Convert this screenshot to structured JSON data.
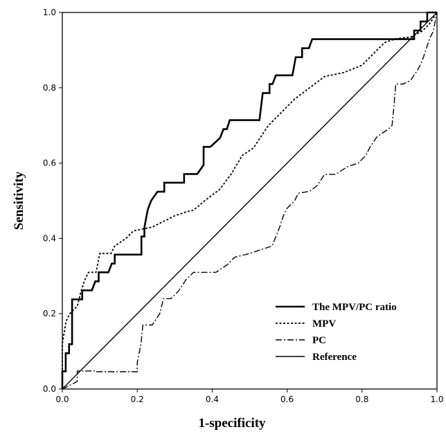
{
  "chart_data": {
    "type": "line",
    "xlabel": "1-specificity",
    "ylabel": "Sensitivity",
    "xlim": [
      0,
      1
    ],
    "ylim": [
      0,
      1
    ],
    "x_ticks": [
      "0.0",
      "0.2",
      "0.4",
      "0.6",
      "0.8",
      "1.0"
    ],
    "y_ticks": [
      "0.0",
      "0.2",
      "0.4",
      "0.6",
      "0.8",
      "1.0"
    ],
    "grid": false,
    "legend_position": "bottom-right",
    "series": [
      {
        "name": "The MPV/PC ratio",
        "style": "solid-thick",
        "points": [
          [
            0,
            0
          ],
          [
            0,
            0.047
          ],
          [
            0.009,
            0.047
          ],
          [
            0.009,
            0.095
          ],
          [
            0.018,
            0.095
          ],
          [
            0.018,
            0.119
          ],
          [
            0.026,
            0.119
          ],
          [
            0.026,
            0.238
          ],
          [
            0.053,
            0.238
          ],
          [
            0.053,
            0.262
          ],
          [
            0.079,
            0.262
          ],
          [
            0.088,
            0.286
          ],
          [
            0.097,
            0.286
          ],
          [
            0.097,
            0.31
          ],
          [
            0.123,
            0.31
          ],
          [
            0.132,
            0.333
          ],
          [
            0.14,
            0.333
          ],
          [
            0.14,
            0.357
          ],
          [
            0.211,
            0.357
          ],
          [
            0.211,
            0.405
          ],
          [
            0.219,
            0.405
          ],
          [
            0.219,
            0.429
          ],
          [
            0.228,
            0.476
          ],
          [
            0.237,
            0.5
          ],
          [
            0.254,
            0.524
          ],
          [
            0.272,
            0.524
          ],
          [
            0.272,
            0.548
          ],
          [
            0.325,
            0.548
          ],
          [
            0.325,
            0.571
          ],
          [
            0.36,
            0.571
          ],
          [
            0.377,
            0.595
          ],
          [
            0.377,
            0.643
          ],
          [
            0.395,
            0.643
          ],
          [
            0.421,
            0.667
          ],
          [
            0.43,
            0.69
          ],
          [
            0.439,
            0.69
          ],
          [
            0.447,
            0.714
          ],
          [
            0.526,
            0.714
          ],
          [
            0.535,
            0.786
          ],
          [
            0.553,
            0.786
          ],
          [
            0.553,
            0.81
          ],
          [
            0.561,
            0.81
          ],
          [
            0.57,
            0.833
          ],
          [
            0.614,
            0.833
          ],
          [
            0.623,
            0.881
          ],
          [
            0.64,
            0.881
          ],
          [
            0.64,
            0.905
          ],
          [
            0.658,
            0.905
          ],
          [
            0.667,
            0.929
          ],
          [
            0.939,
            0.929
          ],
          [
            0.939,
            0.952
          ],
          [
            0.956,
            0.952
          ],
          [
            0.956,
            0.976
          ],
          [
            0.974,
            0.976
          ],
          [
            0.974,
            1
          ],
          [
            1,
            1
          ]
        ]
      },
      {
        "name": "MPV",
        "style": "dotted",
        "points": [
          [
            0,
            0
          ],
          [
            0,
            0.12
          ],
          [
            0.01,
            0.18
          ],
          [
            0.02,
            0.2
          ],
          [
            0.04,
            0.22
          ],
          [
            0.05,
            0.26
          ],
          [
            0.06,
            0.29
          ],
          [
            0.07,
            0.31
          ],
          [
            0.09,
            0.31
          ],
          [
            0.1,
            0.36
          ],
          [
            0.13,
            0.36
          ],
          [
            0.14,
            0.38
          ],
          [
            0.17,
            0.4
          ],
          [
            0.19,
            0.42
          ],
          [
            0.24,
            0.43
          ],
          [
            0.26,
            0.44
          ],
          [
            0.3,
            0.46
          ],
          [
            0.33,
            0.47
          ],
          [
            0.35,
            0.475
          ],
          [
            0.38,
            0.5
          ],
          [
            0.42,
            0.53
          ],
          [
            0.45,
            0.57
          ],
          [
            0.48,
            0.62
          ],
          [
            0.51,
            0.64
          ],
          [
            0.53,
            0.67
          ],
          [
            0.55,
            0.7
          ],
          [
            0.58,
            0.73
          ],
          [
            0.62,
            0.77
          ],
          [
            0.66,
            0.8
          ],
          [
            0.7,
            0.83
          ],
          [
            0.75,
            0.84
          ],
          [
            0.8,
            0.86
          ],
          [
            0.83,
            0.89
          ],
          [
            0.86,
            0.92
          ],
          [
            0.89,
            0.93
          ],
          [
            0.93,
            0.935
          ],
          [
            0.96,
            0.95
          ],
          [
            0.98,
            0.97
          ],
          [
            1,
            1
          ]
        ]
      },
      {
        "name": "PC",
        "style": "dash-dot",
        "points": [
          [
            0,
            0
          ],
          [
            0.04,
            0.02
          ],
          [
            0.04,
            0.048
          ],
          [
            0.09,
            0.048
          ],
          [
            0.09,
            0.046
          ],
          [
            0.2,
            0.046
          ],
          [
            0.2,
            0.07
          ],
          [
            0.21,
            0.12
          ],
          [
            0.215,
            0.17
          ],
          [
            0.24,
            0.17
          ],
          [
            0.26,
            0.2
          ],
          [
            0.27,
            0.24
          ],
          [
            0.29,
            0.24
          ],
          [
            0.31,
            0.26
          ],
          [
            0.33,
            0.29
          ],
          [
            0.35,
            0.31
          ],
          [
            0.41,
            0.31
          ],
          [
            0.44,
            0.33
          ],
          [
            0.46,
            0.35
          ],
          [
            0.5,
            0.36
          ],
          [
            0.53,
            0.37
          ],
          [
            0.56,
            0.38
          ],
          [
            0.58,
            0.43
          ],
          [
            0.59,
            0.46
          ],
          [
            0.6,
            0.48
          ],
          [
            0.62,
            0.5
          ],
          [
            0.63,
            0.52
          ],
          [
            0.66,
            0.525
          ],
          [
            0.68,
            0.54
          ],
          [
            0.7,
            0.57
          ],
          [
            0.73,
            0.57
          ],
          [
            0.76,
            0.59
          ],
          [
            0.79,
            0.6
          ],
          [
            0.81,
            0.62
          ],
          [
            0.82,
            0.64
          ],
          [
            0.84,
            0.67
          ],
          [
            0.87,
            0.69
          ],
          [
            0.88,
            0.7
          ],
          [
            0.885,
            0.75
          ],
          [
            0.89,
            0.81
          ],
          [
            0.91,
            0.81
          ],
          [
            0.93,
            0.82
          ],
          [
            0.95,
            0.85
          ],
          [
            0.96,
            0.87
          ],
          [
            0.97,
            0.9
          ],
          [
            0.98,
            0.93
          ],
          [
            0.99,
            0.95
          ],
          [
            1,
            1
          ]
        ]
      },
      {
        "name": "Reference",
        "style": "solid-thin",
        "points": [
          [
            0,
            0
          ],
          [
            1,
            1
          ]
        ]
      }
    ]
  }
}
